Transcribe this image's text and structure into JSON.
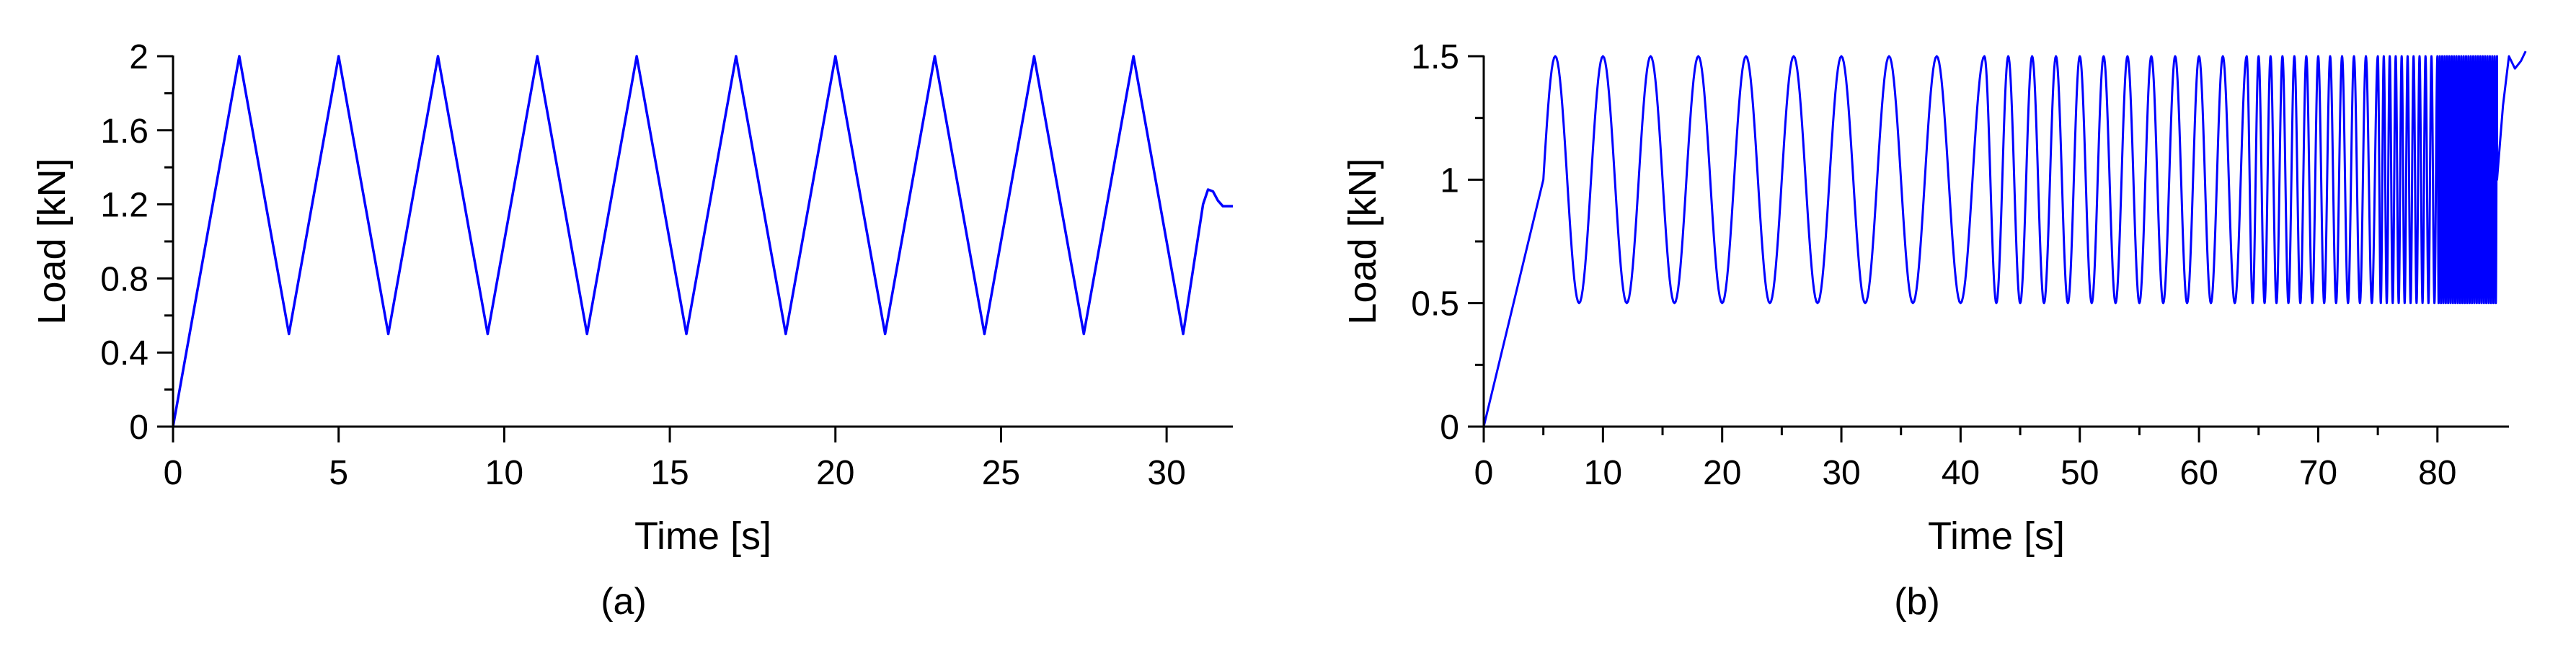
{
  "chart_data": [
    {
      "type": "line",
      "panel_label": "(a)",
      "xlabel": "Time [s]",
      "ylabel": "Load [kN]",
      "xlim": [
        0,
        32
      ],
      "ylim": [
        0,
        2
      ],
      "xticks": [
        0,
        5,
        10,
        15,
        20,
        25,
        30
      ],
      "xtick_labels": [
        "0",
        "5",
        "10",
        "15",
        "20",
        "25",
        "30"
      ],
      "yticks": [
        0,
        0.4,
        0.8,
        1.2,
        1.6,
        2
      ],
      "ytick_labels": [
        "0",
        "0.4",
        "0.8",
        "1.2",
        "1.6",
        "2"
      ],
      "grid": false,
      "series_color": "#0000ff",
      "series": [
        {
          "x": [
            0,
            2,
            3.5,
            5,
            6.5,
            8,
            9.5,
            11,
            12.5,
            14,
            15.5,
            17,
            18.5,
            20,
            21.5,
            23,
            24.5,
            26,
            27.5,
            29,
            30.5,
            31.1,
            31.25,
            31.4,
            31.55,
            31.7,
            31.85,
            32
          ],
          "y": [
            0,
            2.0,
            0.5,
            2.0,
            0.5,
            2.0,
            0.5,
            2.0,
            0.5,
            2.0,
            0.5,
            2.0,
            0.5,
            2.0,
            0.5,
            2.0,
            0.5,
            2.0,
            0.5,
            2.0,
            0.5,
            1.2,
            1.28,
            1.27,
            1.22,
            1.19,
            1.19,
            1.19
          ]
        }
      ]
    },
    {
      "type": "line",
      "panel_label": "(b)",
      "xlabel": "Time [s]",
      "ylabel": "Load [kN]",
      "xlim": [
        0,
        86
      ],
      "ylim": [
        0,
        1.5
      ],
      "xticks": [
        0,
        10,
        20,
        30,
        40,
        50,
        60,
        70,
        80
      ],
      "xtick_labels": [
        "0",
        "10",
        "20",
        "30",
        "40",
        "50",
        "60",
        "70",
        "80"
      ],
      "yticks": [
        0,
        0.5,
        1,
        1.5
      ],
      "ytick_labels": [
        "0",
        "0.5",
        "1",
        "1.5"
      ],
      "grid": false,
      "series_color": "#0000ff",
      "series": [
        {
          "ramp": {
            "x": [
              0,
              5
            ],
            "y": [
              0,
              1.0
            ]
          },
          "oscillation": {
            "mean": 1.0,
            "amplitude": 0.5,
            "min": 0.5,
            "max": 1.5
          },
          "frequency_segments": [
            {
              "t_start": 5,
              "t_end": 42,
              "period": 4
            },
            {
              "t_start": 42,
              "t_end": 64,
              "period": 2
            },
            {
              "t_start": 64,
              "t_end": 75,
              "period": 1
            },
            {
              "t_start": 75,
              "t_end": 80,
              "period": 0.5
            },
            {
              "t_start": 80,
              "t_end": 85,
              "period": 0.2
            }
          ],
          "tail": {
            "x": [
              85,
              85.5,
              86,
              86.5,
              87,
              87.4
            ],
            "y": [
              1.0,
              1.3,
              1.5,
              1.45,
              1.48,
              1.52
            ]
          }
        }
      ]
    }
  ]
}
